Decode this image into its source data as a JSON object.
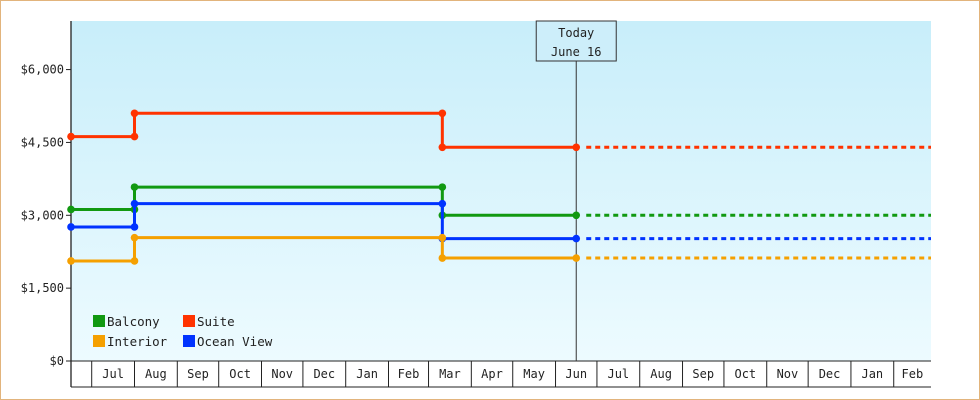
{
  "chart_data": {
    "type": "line",
    "step": true,
    "y_ticks": [
      "$0",
      "$1,500",
      "$3,000",
      "$4,500",
      "$6,000"
    ],
    "y_tick_values": [
      0,
      1500,
      3000,
      4500,
      6000
    ],
    "ylim": [
      0,
      7000
    ],
    "x_start": "2019-06-16",
    "x_end": "2021-02-28",
    "x_ticks": [
      {
        "date": "2019-07-01",
        "label": "Jul"
      },
      {
        "date": "2019-08-01",
        "label": "Aug"
      },
      {
        "date": "2019-09-01",
        "label": "Sep"
      },
      {
        "date": "2019-10-01",
        "label": "Oct"
      },
      {
        "date": "2019-11-01",
        "label": "Nov"
      },
      {
        "date": "2019-12-01",
        "label": "Dec"
      },
      {
        "date": "2020-01-01",
        "label": "Jan"
      },
      {
        "date": "2020-02-01",
        "label": "Feb"
      },
      {
        "date": "2020-03-01",
        "label": "Mar"
      },
      {
        "date": "2020-04-01",
        "label": "Apr"
      },
      {
        "date": "2020-05-01",
        "label": "May"
      },
      {
        "date": "2020-06-01",
        "label": "Jun"
      },
      {
        "date": "2020-07-01",
        "label": "Jul"
      },
      {
        "date": "2020-08-01",
        "label": "Aug"
      },
      {
        "date": "2020-09-01",
        "label": "Sep"
      },
      {
        "date": "2020-10-01",
        "label": "Oct"
      },
      {
        "date": "2020-11-01",
        "label": "Nov"
      },
      {
        "date": "2020-12-01",
        "label": "Dec"
      },
      {
        "date": "2021-01-01",
        "label": "Jan"
      },
      {
        "date": "2021-02-01",
        "label": "Feb"
      }
    ],
    "today": {
      "date": "2020-06-16",
      "label_line1": "Today",
      "label_line2": "June 16"
    },
    "projection_end": "2021-02-28",
    "series": [
      {
        "name": "Suite",
        "color": "#ff3300",
        "points": [
          [
            "2019-06-16",
            4620
          ],
          [
            "2019-08-01",
            4620
          ],
          [
            "2019-08-01",
            5100
          ],
          [
            "2020-03-11",
            5100
          ],
          [
            "2020-03-11",
            4400
          ],
          [
            "2020-06-16",
            4400
          ]
        ]
      },
      {
        "name": "Balcony",
        "color": "#119911",
        "points": [
          [
            "2019-06-16",
            3120
          ],
          [
            "2019-08-01",
            3120
          ],
          [
            "2019-08-01",
            3580
          ],
          [
            "2020-03-11",
            3580
          ],
          [
            "2020-03-11",
            3000
          ],
          [
            "2020-06-16",
            3000
          ]
        ]
      },
      {
        "name": "Ocean View",
        "color": "#0033ff",
        "points": [
          [
            "2019-06-16",
            2760
          ],
          [
            "2019-08-01",
            2760
          ],
          [
            "2019-08-01",
            3240
          ],
          [
            "2020-03-11",
            3240
          ],
          [
            "2020-03-11",
            2520
          ],
          [
            "2020-06-16",
            2520
          ]
        ]
      },
      {
        "name": "Interior",
        "color": "#f5a000",
        "points": [
          [
            "2019-06-16",
            2060
          ],
          [
            "2019-08-01",
            2060
          ],
          [
            "2019-08-01",
            2540
          ],
          [
            "2020-03-11",
            2540
          ],
          [
            "2020-03-11",
            2120
          ],
          [
            "2020-06-16",
            2120
          ]
        ]
      }
    ],
    "legend": {
      "placement": "bottom-left",
      "order": [
        "Balcony",
        "Suite",
        "Interior",
        "Ocean View"
      ]
    },
    "grid": false
  }
}
